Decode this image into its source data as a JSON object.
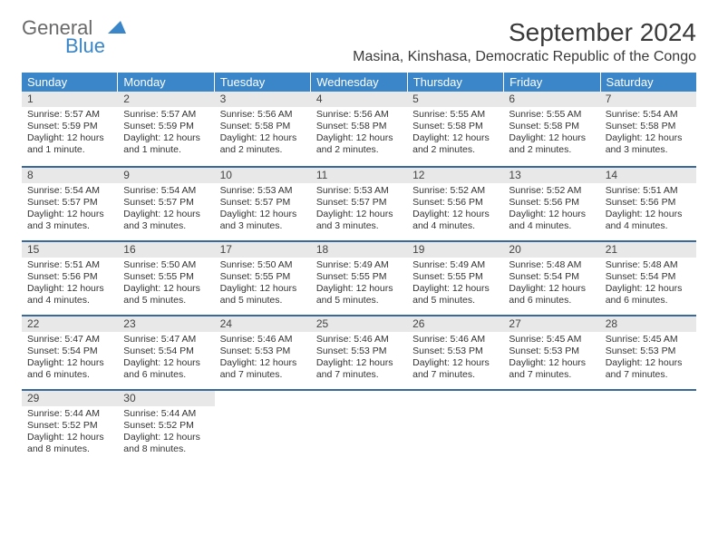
{
  "logo": {
    "text1": "General",
    "text2": "Blue"
  },
  "title": "September 2024",
  "location": "Masina, Kinshasa, Democratic Republic of the Congo",
  "colors": {
    "header_bg": "#3a86c8",
    "week_border": "#3a6a9a",
    "day_band": "#e8e8e8"
  },
  "day_headers": [
    "Sunday",
    "Monday",
    "Tuesday",
    "Wednesday",
    "Thursday",
    "Friday",
    "Saturday"
  ],
  "weeks": [
    [
      {
        "n": "1",
        "sr": "Sunrise: 5:57 AM",
        "ss": "Sunset: 5:59 PM",
        "dl1": "Daylight: 12 hours",
        "dl2": "and 1 minute."
      },
      {
        "n": "2",
        "sr": "Sunrise: 5:57 AM",
        "ss": "Sunset: 5:59 PM",
        "dl1": "Daylight: 12 hours",
        "dl2": "and 1 minute."
      },
      {
        "n": "3",
        "sr": "Sunrise: 5:56 AM",
        "ss": "Sunset: 5:58 PM",
        "dl1": "Daylight: 12 hours",
        "dl2": "and 2 minutes."
      },
      {
        "n": "4",
        "sr": "Sunrise: 5:56 AM",
        "ss": "Sunset: 5:58 PM",
        "dl1": "Daylight: 12 hours",
        "dl2": "and 2 minutes."
      },
      {
        "n": "5",
        "sr": "Sunrise: 5:55 AM",
        "ss": "Sunset: 5:58 PM",
        "dl1": "Daylight: 12 hours",
        "dl2": "and 2 minutes."
      },
      {
        "n": "6",
        "sr": "Sunrise: 5:55 AM",
        "ss": "Sunset: 5:58 PM",
        "dl1": "Daylight: 12 hours",
        "dl2": "and 2 minutes."
      },
      {
        "n": "7",
        "sr": "Sunrise: 5:54 AM",
        "ss": "Sunset: 5:58 PM",
        "dl1": "Daylight: 12 hours",
        "dl2": "and 3 minutes."
      }
    ],
    [
      {
        "n": "8",
        "sr": "Sunrise: 5:54 AM",
        "ss": "Sunset: 5:57 PM",
        "dl1": "Daylight: 12 hours",
        "dl2": "and 3 minutes."
      },
      {
        "n": "9",
        "sr": "Sunrise: 5:54 AM",
        "ss": "Sunset: 5:57 PM",
        "dl1": "Daylight: 12 hours",
        "dl2": "and 3 minutes."
      },
      {
        "n": "10",
        "sr": "Sunrise: 5:53 AM",
        "ss": "Sunset: 5:57 PM",
        "dl1": "Daylight: 12 hours",
        "dl2": "and 3 minutes."
      },
      {
        "n": "11",
        "sr": "Sunrise: 5:53 AM",
        "ss": "Sunset: 5:57 PM",
        "dl1": "Daylight: 12 hours",
        "dl2": "and 3 minutes."
      },
      {
        "n": "12",
        "sr": "Sunrise: 5:52 AM",
        "ss": "Sunset: 5:56 PM",
        "dl1": "Daylight: 12 hours",
        "dl2": "and 4 minutes."
      },
      {
        "n": "13",
        "sr": "Sunrise: 5:52 AM",
        "ss": "Sunset: 5:56 PM",
        "dl1": "Daylight: 12 hours",
        "dl2": "and 4 minutes."
      },
      {
        "n": "14",
        "sr": "Sunrise: 5:51 AM",
        "ss": "Sunset: 5:56 PM",
        "dl1": "Daylight: 12 hours",
        "dl2": "and 4 minutes."
      }
    ],
    [
      {
        "n": "15",
        "sr": "Sunrise: 5:51 AM",
        "ss": "Sunset: 5:56 PM",
        "dl1": "Daylight: 12 hours",
        "dl2": "and 4 minutes."
      },
      {
        "n": "16",
        "sr": "Sunrise: 5:50 AM",
        "ss": "Sunset: 5:55 PM",
        "dl1": "Daylight: 12 hours",
        "dl2": "and 5 minutes."
      },
      {
        "n": "17",
        "sr": "Sunrise: 5:50 AM",
        "ss": "Sunset: 5:55 PM",
        "dl1": "Daylight: 12 hours",
        "dl2": "and 5 minutes."
      },
      {
        "n": "18",
        "sr": "Sunrise: 5:49 AM",
        "ss": "Sunset: 5:55 PM",
        "dl1": "Daylight: 12 hours",
        "dl2": "and 5 minutes."
      },
      {
        "n": "19",
        "sr": "Sunrise: 5:49 AM",
        "ss": "Sunset: 5:55 PM",
        "dl1": "Daylight: 12 hours",
        "dl2": "and 5 minutes."
      },
      {
        "n": "20",
        "sr": "Sunrise: 5:48 AM",
        "ss": "Sunset: 5:54 PM",
        "dl1": "Daylight: 12 hours",
        "dl2": "and 6 minutes."
      },
      {
        "n": "21",
        "sr": "Sunrise: 5:48 AM",
        "ss": "Sunset: 5:54 PM",
        "dl1": "Daylight: 12 hours",
        "dl2": "and 6 minutes."
      }
    ],
    [
      {
        "n": "22",
        "sr": "Sunrise: 5:47 AM",
        "ss": "Sunset: 5:54 PM",
        "dl1": "Daylight: 12 hours",
        "dl2": "and 6 minutes."
      },
      {
        "n": "23",
        "sr": "Sunrise: 5:47 AM",
        "ss": "Sunset: 5:54 PM",
        "dl1": "Daylight: 12 hours",
        "dl2": "and 6 minutes."
      },
      {
        "n": "24",
        "sr": "Sunrise: 5:46 AM",
        "ss": "Sunset: 5:53 PM",
        "dl1": "Daylight: 12 hours",
        "dl2": "and 7 minutes."
      },
      {
        "n": "25",
        "sr": "Sunrise: 5:46 AM",
        "ss": "Sunset: 5:53 PM",
        "dl1": "Daylight: 12 hours",
        "dl2": "and 7 minutes."
      },
      {
        "n": "26",
        "sr": "Sunrise: 5:46 AM",
        "ss": "Sunset: 5:53 PM",
        "dl1": "Daylight: 12 hours",
        "dl2": "and 7 minutes."
      },
      {
        "n": "27",
        "sr": "Sunrise: 5:45 AM",
        "ss": "Sunset: 5:53 PM",
        "dl1": "Daylight: 12 hours",
        "dl2": "and 7 minutes."
      },
      {
        "n": "28",
        "sr": "Sunrise: 5:45 AM",
        "ss": "Sunset: 5:53 PM",
        "dl1": "Daylight: 12 hours",
        "dl2": "and 7 minutes."
      }
    ],
    [
      {
        "n": "29",
        "sr": "Sunrise: 5:44 AM",
        "ss": "Sunset: 5:52 PM",
        "dl1": "Daylight: 12 hours",
        "dl2": "and 8 minutes."
      },
      {
        "n": "30",
        "sr": "Sunrise: 5:44 AM",
        "ss": "Sunset: 5:52 PM",
        "dl1": "Daylight: 12 hours",
        "dl2": "and 8 minutes."
      },
      {
        "empty": true
      },
      {
        "empty": true
      },
      {
        "empty": true
      },
      {
        "empty": true
      },
      {
        "empty": true
      }
    ]
  ]
}
